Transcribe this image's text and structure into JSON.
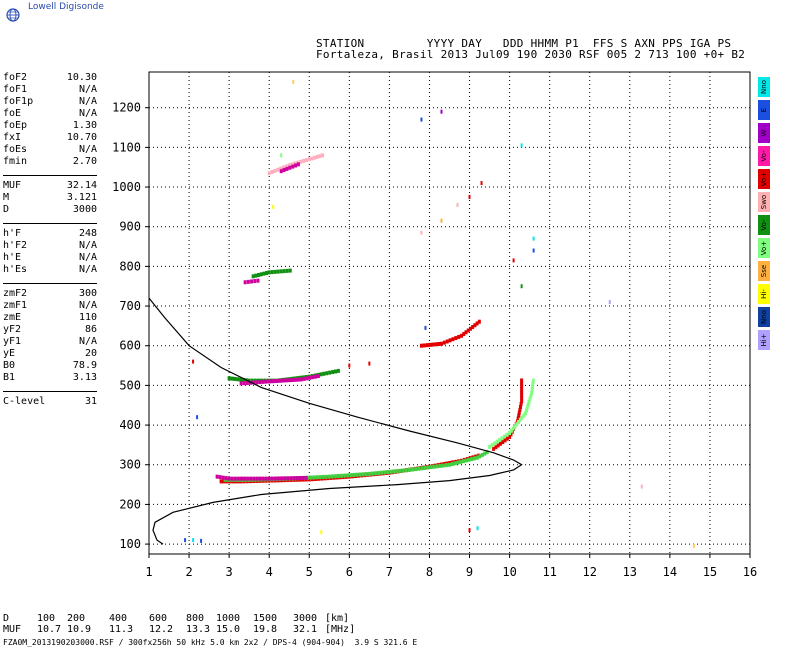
{
  "logo_text": "Lowell Digisonde",
  "header": {
    "line1": "STATION         YYYY DAY   DDD HHMM P1  FFS S AXN PPS IGA PS",
    "line2": "Fortaleza, Brasil 2013 Jul09 190 2030 RSF 005 2 713 100 +0+ B2"
  },
  "parameters": [
    {
      "label": "foF2",
      "value": "10.30"
    },
    {
      "label": "foF1",
      "value": "N/A"
    },
    {
      "label": "foF1p",
      "value": "N/A"
    },
    {
      "label": "foE",
      "value": "N/A"
    },
    {
      "label": "foEp",
      "value": "1.30"
    },
    {
      "label": "fxI",
      "value": "10.70"
    },
    {
      "label": "foEs",
      "value": "N/A"
    },
    {
      "label": "fmin",
      "value": "2.70"
    },
    {
      "sep": true
    },
    {
      "label": "MUF",
      "value": "32.14"
    },
    {
      "label": "M",
      "value": "3.121"
    },
    {
      "label": "D",
      "value": "3000"
    },
    {
      "sep": true
    },
    {
      "label": "h'F",
      "value": "248"
    },
    {
      "label": "h'F2",
      "value": "N/A"
    },
    {
      "label": "h'E",
      "value": "N/A"
    },
    {
      "label": "h'Es",
      "value": "N/A"
    },
    {
      "sep": true
    },
    {
      "label": "zmF2",
      "value": "300"
    },
    {
      "label": "zmF1",
      "value": "N/A"
    },
    {
      "label": "zmE",
      "value": "110"
    },
    {
      "label": "yF2",
      "value": "86"
    },
    {
      "label": "yF1",
      "value": "N/A"
    },
    {
      "label": "yE",
      "value": "20"
    },
    {
      "label": "B0",
      "value": "78.9"
    },
    {
      "label": "B1",
      "value": "3.13"
    },
    {
      "sep": true
    },
    {
      "label": "C-level",
      "value": "31"
    }
  ],
  "legend": [
    {
      "label": "Nno",
      "color": "#00e8e8"
    },
    {
      "label": "E",
      "color": "#1a4fe0"
    },
    {
      "label": "W",
      "color": "#a000c8"
    },
    {
      "label": "Vo-",
      "color": "#ff1aa8"
    },
    {
      "label": "Vo+",
      "color": "#e00000"
    },
    {
      "label": "Swo",
      "color": "#ffb0b0"
    },
    {
      "label": "Vo-",
      "color": "#109010"
    },
    {
      "label": "Vo+",
      "color": "#80ff80"
    },
    {
      "label": "Sse",
      "color": "#ffb040"
    },
    {
      "label": "Hi-",
      "color": "#ffff00"
    },
    {
      "label": "Nno",
      "color": "#1040a0"
    },
    {
      "label": "Hi+",
      "color": "#b0a0ff"
    }
  ],
  "distance_table": {
    "d_label": "D",
    "d_values": [
      "100",
      "200",
      "400",
      "600",
      "800",
      "1000",
      "1500",
      "3000"
    ],
    "d_unit": "[km]",
    "muf_label": "MUF",
    "muf_values": [
      "10.7",
      "10.9",
      "11.3",
      "12.2",
      "13.3",
      "15.0",
      "19.8",
      "32.1"
    ],
    "muf_unit": "[MHz]"
  },
  "footer": "FZA0M_2013190203000.RSF / 300fx256h 50 kHz 5.0 km 2x2 / DPS-4 (904-904)  3.9 S 321.6 E",
  "chart_data": {
    "type": "scatter",
    "xlim": [
      1,
      16
    ],
    "ylim": [
      75,
      1290
    ],
    "x_ticks": [
      1,
      2,
      3,
      4,
      5,
      6,
      7,
      8,
      9,
      10,
      11,
      12,
      13,
      14,
      15,
      16
    ],
    "y_ticks": [
      100,
      200,
      300,
      400,
      500,
      600,
      700,
      800,
      900,
      1000,
      1100,
      1200
    ],
    "grid": true,
    "profile": [
      {
        "x": 1.0,
        "y": 720
      },
      {
        "x": 1.4,
        "y": 670
      },
      {
        "x": 2.0,
        "y": 600
      },
      {
        "x": 2.8,
        "y": 545
      },
      {
        "x": 3.8,
        "y": 495
      },
      {
        "x": 5.0,
        "y": 455
      },
      {
        "x": 6.2,
        "y": 420
      },
      {
        "x": 7.5,
        "y": 385
      },
      {
        "x": 8.7,
        "y": 355
      },
      {
        "x": 9.6,
        "y": 330
      },
      {
        "x": 10.1,
        "y": 312
      },
      {
        "x": 10.3,
        "y": 300
      },
      {
        "x": 10.1,
        "y": 287
      },
      {
        "x": 9.5,
        "y": 273
      },
      {
        "x": 8.5,
        "y": 260
      },
      {
        "x": 7.2,
        "y": 250
      },
      {
        "x": 5.5,
        "y": 240
      },
      {
        "x": 3.8,
        "y": 225
      },
      {
        "x": 2.6,
        "y": 205
      },
      {
        "x": 1.6,
        "y": 180
      },
      {
        "x": 1.15,
        "y": 155
      },
      {
        "x": 1.1,
        "y": 135
      },
      {
        "x": 1.2,
        "y": 110
      },
      {
        "x": 1.35,
        "y": 100
      }
    ],
    "traces": [
      {
        "name": "F trace low",
        "color": "#e00000",
        "points": [
          [
            2.8,
            258
          ],
          [
            3.3,
            258
          ],
          [
            4.0,
            260
          ],
          [
            5.0,
            263
          ],
          [
            6.0,
            270
          ],
          [
            7.0,
            280
          ],
          [
            8.0,
            295
          ],
          [
            8.8,
            310
          ],
          [
            9.3,
            325
          ]
        ]
      },
      {
        "name": "F trace green",
        "color": "#40d040",
        "points": [
          [
            2.9,
            262
          ],
          [
            3.5,
            262
          ],
          [
            4.5,
            265
          ],
          [
            5.5,
            270
          ],
          [
            6.5,
            277
          ],
          [
            7.5,
            287
          ],
          [
            8.5,
            300
          ],
          [
            9.2,
            318
          ],
          [
            9.5,
            335
          ]
        ]
      },
      {
        "name": "F trace magenta",
        "color": "#d000a0",
        "points": [
          [
            2.7,
            270
          ],
          [
            3.0,
            265
          ],
          [
            4.0,
            265
          ],
          [
            5.0,
            267
          ]
        ]
      },
      {
        "name": "cusp red",
        "color": "#e00000",
        "points": [
          [
            9.6,
            340
          ],
          [
            10.0,
            370
          ],
          [
            10.2,
            410
          ],
          [
            10.3,
            460
          ],
          [
            10.3,
            520
          ]
        ]
      },
      {
        "name": "cusp green",
        "color": "#80ff80",
        "points": [
          [
            9.5,
            345
          ],
          [
            10.0,
            380
          ],
          [
            10.4,
            430
          ],
          [
            10.55,
            480
          ],
          [
            10.6,
            520
          ]
        ]
      },
      {
        "name": "2F trace",
        "color": "#109010",
        "points": [
          [
            3.0,
            518
          ],
          [
            3.5,
            512
          ],
          [
            4.2,
            512
          ],
          [
            5.0,
            522
          ],
          [
            5.8,
            538
          ]
        ]
      },
      {
        "name": "2F trace magenta",
        "color": "#d000a0",
        "points": [
          [
            3.3,
            505
          ],
          [
            4.0,
            510
          ],
          [
            4.8,
            515
          ],
          [
            5.3,
            525
          ]
        ]
      },
      {
        "name": "2F high",
        "color": "#e00000",
        "points": [
          [
            7.8,
            600
          ],
          [
            8.3,
            605
          ],
          [
            8.8,
            625
          ],
          [
            9.3,
            665
          ]
        ]
      },
      {
        "name": "3F trace",
        "color": "#109010",
        "points": [
          [
            3.6,
            775
          ],
          [
            4.0,
            785
          ],
          [
            4.6,
            790
          ]
        ]
      },
      {
        "name": "3F magenta",
        "color": "#d000a0",
        "points": [
          [
            3.4,
            760
          ],
          [
            3.8,
            765
          ]
        ]
      },
      {
        "name": "4F trace",
        "color": "#ffb0c0",
        "points": [
          [
            4.0,
            1035
          ],
          [
            4.5,
            1055
          ],
          [
            5.0,
            1070
          ],
          [
            5.4,
            1082
          ]
        ]
      },
      {
        "name": "4F magenta",
        "color": "#d000a0",
        "points": [
          [
            4.3,
            1040
          ],
          [
            4.8,
            1060
          ]
        ]
      }
    ],
    "scatter_points": [
      {
        "x": 1.9,
        "y": 110,
        "c": "#1a4fe0"
      },
      {
        "x": 2.1,
        "y": 110,
        "c": "#00e8e8"
      },
      {
        "x": 2.3,
        "y": 108,
        "c": "#1a4fe0"
      },
      {
        "x": 2.2,
        "y": 420,
        "c": "#1a4fe0"
      },
      {
        "x": 2.1,
        "y": 560,
        "c": "#e00000"
      },
      {
        "x": 4.6,
        "y": 1265,
        "c": "#ffd060"
      },
      {
        "x": 7.8,
        "y": 1170,
        "c": "#1a4fe0"
      },
      {
        "x": 8.3,
        "y": 1190,
        "c": "#a000c8"
      },
      {
        "x": 10.3,
        "y": 1105,
        "c": "#00e8e8"
      },
      {
        "x": 9.0,
        "y": 975,
        "c": "#e00000"
      },
      {
        "x": 9.3,
        "y": 1010,
        "c": "#e00000"
      },
      {
        "x": 7.8,
        "y": 885,
        "c": "#ffb0b0"
      },
      {
        "x": 8.3,
        "y": 915,
        "c": "#ffb040"
      },
      {
        "x": 8.7,
        "y": 955,
        "c": "#ffb0b0"
      },
      {
        "x": 10.1,
        "y": 815,
        "c": "#e00000"
      },
      {
        "x": 10.3,
        "y": 750,
        "c": "#109010"
      },
      {
        "x": 10.6,
        "y": 840,
        "c": "#1a4fe0"
      },
      {
        "x": 10.6,
        "y": 870,
        "c": "#00e8e8"
      },
      {
        "x": 12.5,
        "y": 710,
        "c": "#b0a0ff"
      },
      {
        "x": 7.9,
        "y": 645,
        "c": "#1a4fe0"
      },
      {
        "x": 6.5,
        "y": 555,
        "c": "#e00000"
      },
      {
        "x": 6.0,
        "y": 550,
        "c": "#e00000"
      },
      {
        "x": 13.3,
        "y": 245,
        "c": "#ffb0c0"
      },
      {
        "x": 9.0,
        "y": 135,
        "c": "#e00000"
      },
      {
        "x": 5.3,
        "y": 130,
        "c": "#ffff00"
      },
      {
        "x": 9.2,
        "y": 140,
        "c": "#00e8e8"
      },
      {
        "x": 4.1,
        "y": 950,
        "c": "#ffff00"
      },
      {
        "x": 4.3,
        "y": 1080,
        "c": "#80ff80"
      },
      {
        "x": 14.6,
        "y": 95,
        "c": "#ffd060"
      }
    ]
  }
}
